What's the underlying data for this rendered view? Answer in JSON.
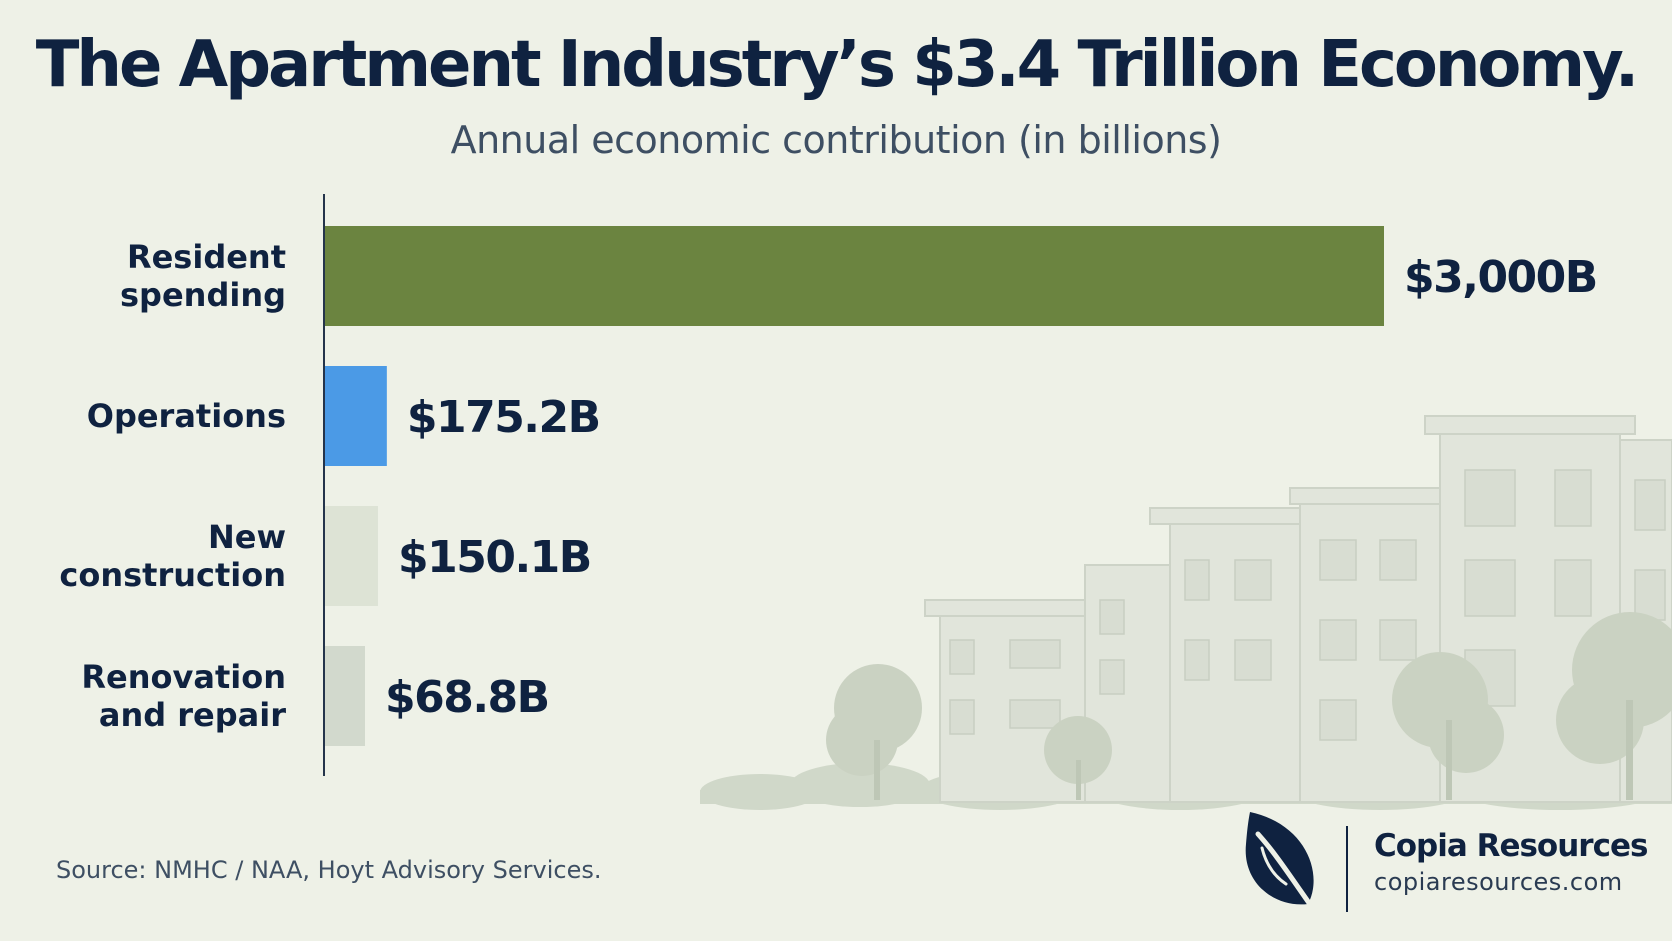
{
  "chart_data": {
    "type": "bar",
    "orientation": "horizontal",
    "title": "The Apartment Industry’s $3.4 Trillion Economy.",
    "subtitle": "Annual economic contribution (in billions)",
    "categories": [
      [
        "Resident",
        "spending"
      ],
      [
        "Operations"
      ],
      [
        "New",
        "construction"
      ],
      [
        "Renovation",
        "and repair"
      ]
    ],
    "values": [
      3000,
      175.2,
      150.1,
      68.8
    ],
    "value_labels": [
      "$3,000B",
      "$175.2B",
      "$150.1B",
      "$68.8B"
    ],
    "colors": [
      "#6b8440",
      "#4b9ae6",
      "#dde3d5",
      "#d2d9cd"
    ],
    "xlim": [
      0,
      3000
    ],
    "grid": false,
    "legend": "none"
  },
  "source": "Source: NMHC / NAA, Hoyt Advisory Services.",
  "brand": {
    "name": "Copia Resources",
    "url": "copiaresources.com",
    "logo_icon": "leaf-icon",
    "color": "#0f2240"
  },
  "background_illustration": "apartment-buildings-illustration"
}
